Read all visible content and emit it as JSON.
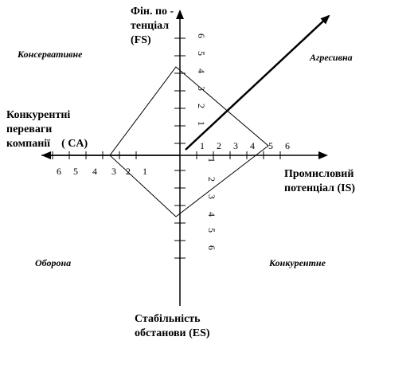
{
  "labels": {
    "top_line1": "Фін. по -",
    "top_line2": "тенціал",
    "top_line3": "(FS)",
    "left_line1": "Конкурентні",
    "left_line2": "переваги",
    "left_line3": "компанії    ( CA)",
    "right_line1": "Промисловий",
    "right_line2": "потенціал (IS)",
    "bottom_line1": "Стабільність",
    "bottom_line2": "обстанови (ES)"
  },
  "quadrants": {
    "top_left": "Консервативне",
    "top_right": "Агресивна",
    "bottom_left": "Оборона",
    "bottom_right": "Конкурентне"
  },
  "ticks": {
    "right": [
      "1",
      "2",
      "3",
      "4",
      "5",
      "6"
    ],
    "left": [
      "6",
      "5",
      "4",
      "3",
      "2",
      "1"
    ],
    "up": [
      "1",
      "2",
      "3",
      "4",
      "5",
      "6"
    ],
    "down": [
      "1",
      "2",
      "3",
      "4",
      "5",
      "6"
    ]
  },
  "colors": {
    "line": "#000000",
    "background": "#ffffff"
  }
}
